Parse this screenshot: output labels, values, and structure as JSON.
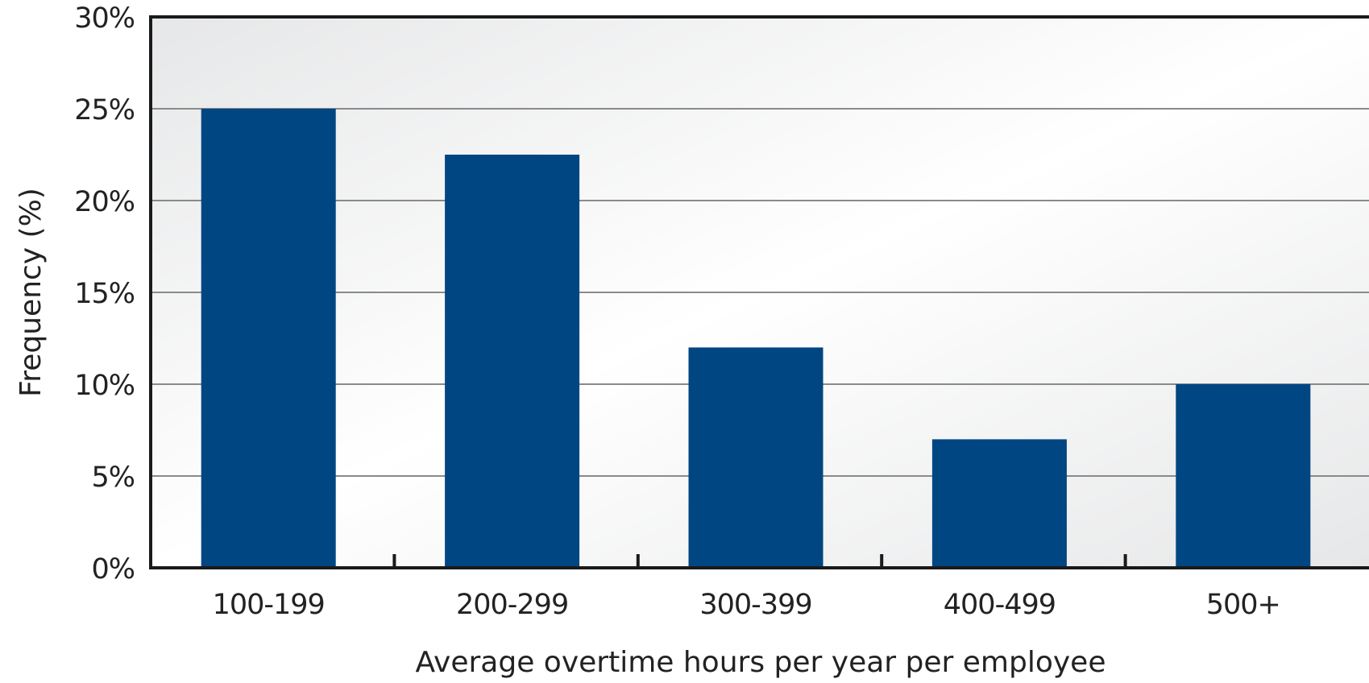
{
  "chart_data": {
    "type": "bar",
    "title": "",
    "xlabel": "Average overtime hours per year per employee",
    "ylabel": "Frequency (%)",
    "categories": [
      "100-199",
      "200-299",
      "300-399",
      "400-499",
      "500+"
    ],
    "values": [
      25,
      22.5,
      12,
      7,
      10
    ],
    "unit": "%",
    "ylim": [
      0,
      30
    ],
    "yticks": [
      0,
      5,
      10,
      15,
      20,
      25,
      30
    ],
    "ytick_labels": [
      "0%",
      "5%",
      "10%",
      "15%",
      "20%",
      "25%",
      "30%"
    ],
    "grid": true,
    "legend": "none",
    "colors": {
      "bar": "#004683",
      "grid": "#8a8a8a",
      "axis": "#1a1a1a",
      "background_light": "#ffffff",
      "background_dark": "#e6e7e8"
    }
  }
}
